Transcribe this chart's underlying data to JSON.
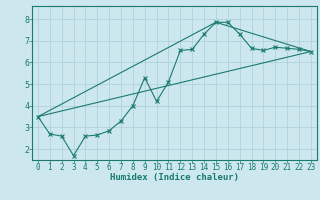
{
  "xlabel": "Humidex (Indice chaleur)",
  "background_color": "#cce8ee",
  "grid_color": "#aacdd6",
  "line_color": "#1a7a6e",
  "xlim": [
    -0.5,
    23.5
  ],
  "ylim": [
    1.5,
    8.6
  ],
  "xticks": [
    0,
    1,
    2,
    3,
    4,
    5,
    6,
    7,
    8,
    9,
    10,
    11,
    12,
    13,
    14,
    15,
    16,
    17,
    18,
    19,
    20,
    21,
    22,
    23
  ],
  "yticks": [
    2,
    3,
    4,
    5,
    6,
    7,
    8
  ],
  "line1_x": [
    0,
    1,
    2,
    3,
    4,
    5,
    6,
    7,
    8,
    9,
    10,
    11,
    12,
    13,
    14,
    15,
    16,
    17,
    18,
    19,
    20,
    21,
    22,
    23
  ],
  "line1_y": [
    3.5,
    2.7,
    2.6,
    1.7,
    2.6,
    2.65,
    2.85,
    3.3,
    4.0,
    5.3,
    4.2,
    5.1,
    6.55,
    6.6,
    7.3,
    7.85,
    7.85,
    7.3,
    6.65,
    6.55,
    6.7,
    6.65,
    6.6,
    6.5
  ],
  "line2_x": [
    0,
    15,
    23
  ],
  "line2_y": [
    3.5,
    7.85,
    6.5
  ],
  "line3_x": [
    0,
    23
  ],
  "line3_y": [
    3.5,
    6.5
  ],
  "tick_fontsize": 5.5,
  "xlabel_fontsize": 6.5
}
